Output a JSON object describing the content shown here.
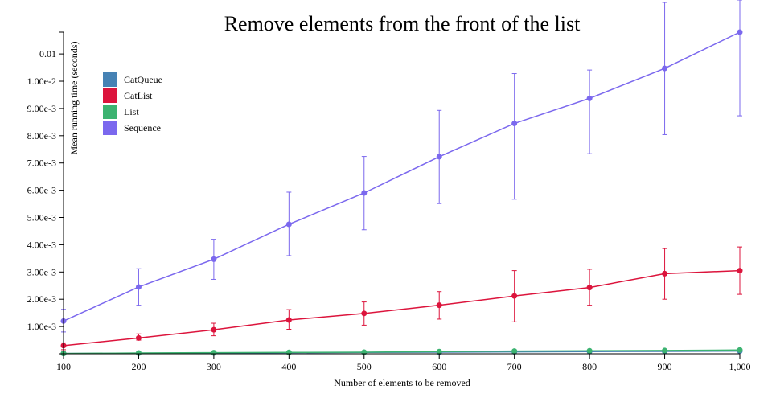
{
  "chart_data": {
    "type": "line",
    "title": "Remove elements from the front of the list",
    "xlabel": "Number of elements to be removed",
    "ylabel": "Mean running time (seconds)",
    "x": [
      100,
      200,
      300,
      400,
      500,
      600,
      700,
      800,
      900,
      1000
    ],
    "xlim": [
      100,
      1000
    ],
    "ylim": [
      0,
      0.0118
    ],
    "x_tick_labels": [
      "100",
      "200",
      "300",
      "400",
      "500",
      "600",
      "700",
      "800",
      "900",
      "1,000"
    ],
    "y_ticks": [
      {
        "value": 0.001,
        "label": "1.00e-3"
      },
      {
        "value": 0.002,
        "label": "2.00e-3"
      },
      {
        "value": 0.003,
        "label": "3.00e-3"
      },
      {
        "value": 0.004,
        "label": "4.00e-3"
      },
      {
        "value": 0.005,
        "label": "5.00e-3"
      },
      {
        "value": 0.006,
        "label": "6.00e-3"
      },
      {
        "value": 0.007,
        "label": "7.00e-3"
      },
      {
        "value": 0.008,
        "label": "8.00e-3"
      },
      {
        "value": 0.009,
        "label": "9.00e-3"
      },
      {
        "value": 0.01,
        "label": "1.00e-2"
      },
      {
        "value": 0.011,
        "label": "0.01"
      }
    ],
    "legend_position": "top-left",
    "grid": false,
    "series": [
      {
        "name": "CatQueue",
        "color": "#4682b4",
        "values": [
          1e-05,
          2e-05,
          3e-05,
          4e-05,
          5e-05,
          6e-05,
          7e-05,
          8e-05,
          9e-05,
          0.0001
        ],
        "err_low": [
          1e-05,
          2e-05,
          3e-05,
          4e-05,
          5e-05,
          6e-05,
          7e-05,
          8e-05,
          9e-05,
          0.0001
        ],
        "err_high": [
          1e-05,
          2e-05,
          3e-05,
          4e-05,
          5e-05,
          6e-05,
          7e-05,
          8e-05,
          9e-05,
          0.0001
        ]
      },
      {
        "name": "CatList",
        "color": "#dc143c",
        "values": [
          0.0003,
          0.00058,
          0.00088,
          0.00124,
          0.00148,
          0.00178,
          0.00212,
          0.00243,
          0.00294,
          0.00305
        ],
        "err_low": [
          0.00015,
          0.0005,
          0.00066,
          0.0009,
          0.00105,
          0.00127,
          0.00117,
          0.00178,
          0.002,
          0.00218
        ],
        "err_high": [
          0.0004,
          0.00073,
          0.00112,
          0.00162,
          0.0019,
          0.00228,
          0.00305,
          0.0031,
          0.00386,
          0.00392
        ]
      },
      {
        "name": "List",
        "color": "#3cb371",
        "values": [
          1e-05,
          3e-05,
          4e-05,
          5e-05,
          6e-05,
          8e-05,
          0.0001,
          0.00011,
          0.00012,
          0.00014
        ],
        "err_low": [
          0.0,
          2e-05,
          3e-05,
          4e-05,
          5e-05,
          6e-05,
          8e-05,
          9e-05,
          0.0001,
          0.00012
        ],
        "err_high": [
          2e-05,
          4e-05,
          5e-05,
          6e-05,
          8e-05,
          0.0001,
          0.00012,
          0.00013,
          0.00014,
          0.00016
        ]
      },
      {
        "name": "Sequence",
        "color": "#7b68ee",
        "values": [
          0.0012,
          0.00245,
          0.00347,
          0.00475,
          0.0059,
          0.00723,
          0.00845,
          0.00937,
          0.01047,
          0.0118
        ],
        "err_low": [
          0.0008,
          0.00178,
          0.00273,
          0.0036,
          0.00455,
          0.00551,
          0.00567,
          0.00734,
          0.00804,
          0.00873
        ],
        "err_high": [
          0.00163,
          0.00312,
          0.0042,
          0.00593,
          0.00724,
          0.00893,
          0.01028,
          0.01041,
          0.01289,
          0.0132
        ]
      }
    ]
  }
}
